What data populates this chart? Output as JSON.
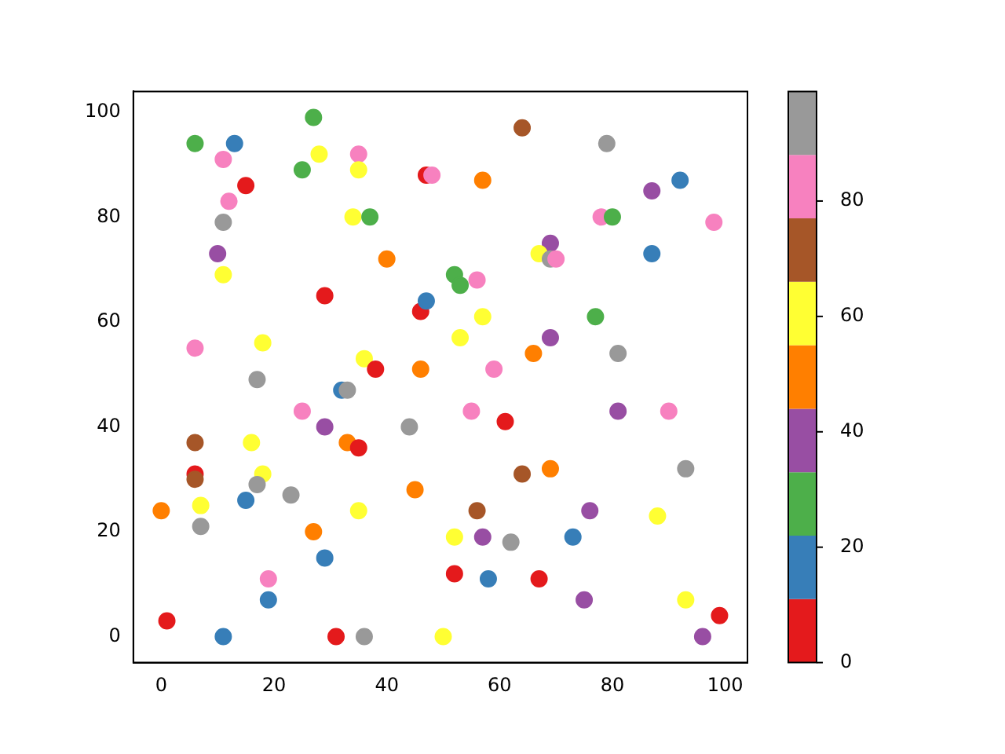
{
  "chart_data": {
    "type": "scatter",
    "marker": "circle",
    "grid": false,
    "legend": false,
    "x": [
      0,
      1,
      6,
      13,
      11,
      15,
      12,
      11,
      10,
      11,
      6,
      17,
      18,
      6,
      6,
      6,
      7,
      7,
      16,
      18,
      17,
      15,
      23,
      19,
      19,
      11,
      25,
      27,
      28,
      35,
      35,
      34,
      37,
      40,
      29,
      25,
      29,
      32,
      33,
      36,
      38,
      33,
      35,
      35,
      27,
      29,
      31,
      36,
      44,
      45,
      46,
      46,
      47,
      47,
      48,
      64,
      79,
      57,
      92,
      87,
      78,
      80,
      98,
      69,
      67,
      69,
      70,
      87,
      52,
      53,
      56,
      57,
      53,
      69,
      77,
      81,
      66,
      59,
      55,
      61,
      81,
      90,
      64,
      69,
      93,
      56,
      76,
      88,
      52,
      57,
      62,
      73,
      52,
      58,
      67,
      75,
      93,
      99,
      96,
      50
    ],
    "values": [
      24,
      3,
      94,
      94,
      91,
      86,
      83,
      79,
      73,
      69,
      55,
      49,
      56,
      37,
      31,
      30,
      25,
      21,
      37,
      31,
      29,
      26,
      27,
      11,
      7,
      0,
      89,
      99,
      92,
      92,
      89,
      80,
      80,
      72,
      65,
      43,
      40,
      47,
      47,
      53,
      51,
      37,
      36,
      24,
      20,
      15,
      0,
      0,
      40,
      28,
      51,
      62,
      64,
      88,
      88,
      97,
      94,
      87,
      87,
      85,
      80,
      80,
      79,
      75,
      73,
      72,
      72,
      73,
      69,
      67,
      68,
      61,
      57,
      57,
      61,
      54,
      54,
      51,
      43,
      41,
      43,
      43,
      31,
      32,
      32,
      24,
      24,
      23,
      19,
      19,
      18,
      19,
      12,
      11,
      11,
      7,
      7,
      4,
      0,
      0
    ],
    "colors": [
      "#ff7f00",
      "#e41a1c",
      "#4daf4a",
      "#377eb8",
      "#f781bf",
      "#e41a1c",
      "#f781bf",
      "#999999",
      "#984ea3",
      "#ffff33",
      "#f781bf",
      "#999999",
      "#ffff33",
      "#a65628",
      "#e41a1c",
      "#a65628",
      "#ffff33",
      "#999999",
      "#ffff33",
      "#ffff33",
      "#999999",
      "#377eb8",
      "#999999",
      "#f781bf",
      "#377eb8",
      "#377eb8",
      "#4daf4a",
      "#4daf4a",
      "#ffff33",
      "#f781bf",
      "#ffff33",
      "#ffff33",
      "#4daf4a",
      "#ff7f00",
      "#e41a1c",
      "#f781bf",
      "#984ea3",
      "#377eb8",
      "#999999",
      "#ffff33",
      "#e41a1c",
      "#ff7f00",
      "#e41a1c",
      "#ffff33",
      "#ff7f00",
      "#377eb8",
      "#e41a1c",
      "#999999",
      "#999999",
      "#ff7f00",
      "#ff7f00",
      "#e41a1c",
      "#377eb8",
      "#e41a1c",
      "#f781bf",
      "#a65628",
      "#999999",
      "#ff7f00",
      "#377eb8",
      "#984ea3",
      "#f781bf",
      "#4daf4a",
      "#f781bf",
      "#984ea3",
      "#ffff33",
      "#999999",
      "#f781bf",
      "#377eb8",
      "#4daf4a",
      "#4daf4a",
      "#f781bf",
      "#ffff33",
      "#ffff33",
      "#984ea3",
      "#4daf4a",
      "#999999",
      "#ff7f00",
      "#f781bf",
      "#f781bf",
      "#e41a1c",
      "#984ea3",
      "#f781bf",
      "#a65628",
      "#ff7f00",
      "#999999",
      "#a65628",
      "#984ea3",
      "#ffff33",
      "#ffff33",
      "#984ea3",
      "#999999",
      "#377eb8",
      "#e41a1c",
      "#377eb8",
      "#e41a1c",
      "#984ea3",
      "#ffff33",
      "#e41a1c",
      "#984ea3",
      "#ffff33"
    ],
    "xlim": [
      -4.95,
      103.95
    ],
    "ylim": [
      -4.95,
      103.95
    ],
    "xticks": [
      0,
      20,
      40,
      60,
      80,
      100
    ],
    "yticks": [
      0,
      20,
      40,
      60,
      80,
      100
    ],
    "clim": [
      0,
      99
    ],
    "cticks": [
      0,
      20,
      40,
      60,
      80
    ]
  }
}
